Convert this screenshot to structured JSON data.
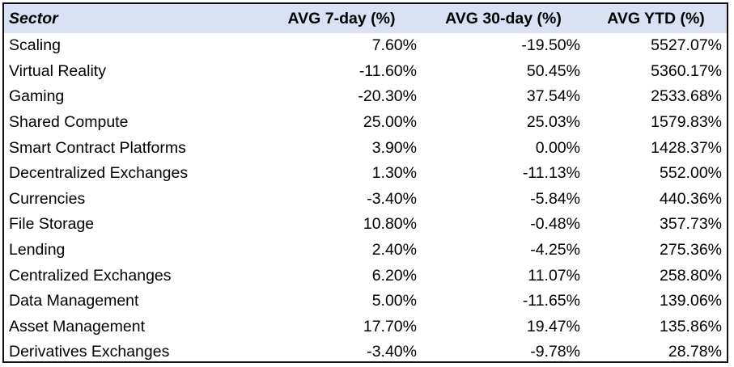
{
  "table": {
    "headers": {
      "sector": "Sector",
      "avg_7d": "AVG 7-day (%)",
      "avg_30d": "AVG 30-day (%)",
      "avg_ytd": "AVG YTD (%)"
    },
    "rows": [
      {
        "sector": "Scaling",
        "avg_7d": "7.60%",
        "avg_30d": "-19.50%",
        "avg_ytd": "5527.07%"
      },
      {
        "sector": "Virtual Reality",
        "avg_7d": "-11.60%",
        "avg_30d": "50.45%",
        "avg_ytd": "5360.17%"
      },
      {
        "sector": "Gaming",
        "avg_7d": "-20.30%",
        "avg_30d": "37.54%",
        "avg_ytd": "2533.68%"
      },
      {
        "sector": "Shared Compute",
        "avg_7d": "25.00%",
        "avg_30d": "25.03%",
        "avg_ytd": "1579.83%"
      },
      {
        "sector": "Smart Contract Platforms",
        "avg_7d": "3.90%",
        "avg_30d": "0.00%",
        "avg_ytd": "1428.37%"
      },
      {
        "sector": "Decentralized Exchanges",
        "avg_7d": "1.30%",
        "avg_30d": "-11.13%",
        "avg_ytd": "552.00%"
      },
      {
        "sector": "Currencies",
        "avg_7d": "-3.40%",
        "avg_30d": "-5.84%",
        "avg_ytd": "440.36%"
      },
      {
        "sector": "File Storage",
        "avg_7d": "10.80%",
        "avg_30d": "-0.48%",
        "avg_ytd": "357.73%"
      },
      {
        "sector": "Lending",
        "avg_7d": "2.40%",
        "avg_30d": "-4.25%",
        "avg_ytd": "275.36%"
      },
      {
        "sector": "Centralized Exchanges",
        "avg_7d": "6.20%",
        "avg_30d": "11.07%",
        "avg_ytd": "258.80%"
      },
      {
        "sector": "Data Management",
        "avg_7d": "5.00%",
        "avg_30d": "-11.65%",
        "avg_ytd": "139.06%"
      },
      {
        "sector": "Asset Management",
        "avg_7d": "17.70%",
        "avg_30d": "19.47%",
        "avg_ytd": "135.86%"
      },
      {
        "sector": "Derivatives Exchanges",
        "avg_7d": "-3.40%",
        "avg_30d": "-9.78%",
        "avg_ytd": "28.78%"
      }
    ],
    "colors": {
      "header_background": "#d9e1f2",
      "border": "#111111",
      "text": "#000000"
    }
  }
}
